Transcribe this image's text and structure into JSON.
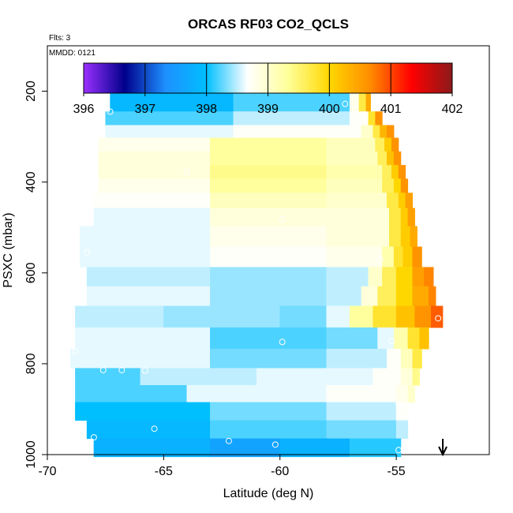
{
  "chart_data": {
    "type": "heatmap",
    "title": "ORCAS RF03 CO2_QCLS",
    "annotations": [
      "Flts: 3",
      "MMDD: 0121"
    ],
    "xlabel": "Latitude (deg N)",
    "ylabel": "PSXC (mbar)",
    "xlim": [
      -70,
      -51
    ],
    "ylim": [
      1000,
      100
    ],
    "x_ticks": [
      -70,
      -65,
      -60,
      -55
    ],
    "x_tick_labels": [
      "-70",
      "-65",
      "-60",
      "-55"
    ],
    "y_ticks": [
      200,
      400,
      600,
      800,
      1000
    ],
    "y_tick_labels": [
      "200",
      "400",
      "600",
      "800",
      "1000"
    ],
    "colorbar": {
      "min": 396,
      "max": 402,
      "ticks": [
        396,
        397,
        398,
        399,
        400,
        401,
        402
      ],
      "tick_labels": [
        "396",
        "397",
        "398",
        "399",
        "400",
        "401",
        "402"
      ],
      "colors": [
        "#9b30ff",
        "#00008b",
        "#1e90ff",
        "#00bfff",
        "#ffffff",
        "#ffff99",
        "#ffd700",
        "#ff8c00",
        "#ff0000",
        "#8b1a1a"
      ]
    },
    "arrow_latitude": -53,
    "rows": [
      {
        "p": 183,
        "segs": [
          [
            -57.9,
            -57.7,
            397.0
          ],
          [
            -57.7,
            -57.5,
            397.6
          ],
          [
            -57.5,
            -57.2,
            398.4
          ],
          [
            -57.2,
            -56.9,
            398.9
          ],
          [
            -56.9,
            -56.6,
            399.8
          ],
          [
            -56.6,
            -56.3,
            400.4
          ]
        ]
      },
      {
        "p": 228,
        "segs": [
          [
            -67.3,
            -62.0,
            397.9
          ],
          [
            -62.0,
            -57.0,
            398.2
          ],
          [
            -57.0,
            -56.6,
            398.8
          ],
          [
            -56.6,
            -56.3,
            399.7
          ],
          [
            -56.3,
            -56.1,
            400.4
          ]
        ]
      },
      {
        "p": 262,
        "segs": [
          [
            -67.5,
            -62.0,
            398.2
          ],
          [
            -62.0,
            -57.0,
            398.5
          ],
          [
            -57.0,
            -56.2,
            398.7
          ],
          [
            -56.2,
            -55.9,
            399.8
          ],
          [
            -55.9,
            -55.6,
            400.6
          ]
        ]
      },
      {
        "p": 288,
        "segs": [
          [
            -67.5,
            -62.0,
            398.6
          ],
          [
            -62.0,
            -56.5,
            398.7
          ],
          [
            -56.5,
            -56.0,
            399.0
          ],
          [
            -56.0,
            -55.7,
            399.7
          ],
          [
            -55.7,
            -55.4,
            400.3
          ],
          [
            -55.4,
            -55.1,
            400.6
          ]
        ]
      },
      {
        "p": 318,
        "segs": [
          [
            -67.8,
            -63.0,
            398.8
          ],
          [
            -63.0,
            -58.0,
            399.3
          ],
          [
            -58.0,
            -55.9,
            399.1
          ],
          [
            -55.9,
            -55.5,
            399.6
          ],
          [
            -55.5,
            -55.2,
            400.1
          ],
          [
            -55.2,
            -54.9,
            400.6
          ]
        ]
      },
      {
        "p": 348,
        "segs": [
          [
            -67.8,
            -63.0,
            398.9
          ],
          [
            -63.0,
            -58.0,
            399.3
          ],
          [
            -58.0,
            -55.8,
            399.1
          ],
          [
            -55.8,
            -55.4,
            399.6
          ],
          [
            -55.4,
            -55.1,
            400.2
          ],
          [
            -55.1,
            -54.8,
            400.6
          ]
        ]
      },
      {
        "p": 378,
        "segs": [
          [
            -67.8,
            -63.0,
            398.9
          ],
          [
            -63.0,
            -58.0,
            399.4
          ],
          [
            -58.0,
            -55.6,
            399.2
          ],
          [
            -55.6,
            -55.2,
            399.6
          ],
          [
            -55.2,
            -54.9,
            400.1
          ],
          [
            -54.9,
            -54.6,
            400.6
          ]
        ]
      },
      {
        "p": 408,
        "segs": [
          [
            -67.8,
            -63.0,
            398.8
          ],
          [
            -63.0,
            -58.0,
            399.3
          ],
          [
            -58.0,
            -55.6,
            399.1
          ],
          [
            -55.6,
            -55.1,
            399.6
          ],
          [
            -55.1,
            -54.8,
            400.0
          ],
          [
            -54.8,
            -54.5,
            400.6
          ]
        ]
      },
      {
        "p": 440,
        "segs": [
          [
            -68.0,
            -63.0,
            398.7
          ],
          [
            -63.0,
            -58.0,
            399.1
          ],
          [
            -58.0,
            -55.4,
            399.0
          ],
          [
            -55.4,
            -54.9,
            399.7
          ],
          [
            -54.9,
            -54.6,
            400.1
          ],
          [
            -54.6,
            -54.3,
            400.5
          ]
        ]
      },
      {
        "p": 475,
        "segs": [
          [
            -68.0,
            -63.0,
            398.6
          ],
          [
            -63.0,
            -58.0,
            398.9
          ],
          [
            -58.0,
            -55.3,
            398.9
          ],
          [
            -55.3,
            -54.8,
            399.7
          ],
          [
            -54.8,
            -54.5,
            400.1
          ],
          [
            -54.5,
            -54.2,
            400.5
          ]
        ]
      },
      {
        "p": 520,
        "segs": [
          [
            -68.6,
            -63.0,
            398.6
          ],
          [
            -63.0,
            -58.0,
            398.8
          ],
          [
            -58.0,
            -55.3,
            398.9
          ],
          [
            -55.3,
            -54.8,
            399.7
          ],
          [
            -54.8,
            -54.4,
            400.1
          ],
          [
            -54.4,
            -54.1,
            400.4
          ]
        ]
      },
      {
        "p": 565,
        "segs": [
          [
            -68.6,
            -63.0,
            398.6
          ],
          [
            -63.0,
            -58.0,
            398.7
          ],
          [
            -58.0,
            -55.6,
            398.8
          ],
          [
            -55.6,
            -55.1,
            399.2
          ],
          [
            -55.1,
            -54.7,
            399.8
          ],
          [
            -54.7,
            -54.3,
            400.1
          ],
          [
            -54.3,
            -53.9,
            400.6
          ]
        ]
      },
      {
        "p": 610,
        "segs": [
          [
            -68.3,
            -63.0,
            398.5
          ],
          [
            -63.0,
            -58.0,
            398.4
          ],
          [
            -58.0,
            -56.2,
            398.5
          ],
          [
            -56.2,
            -55.6,
            399.0
          ],
          [
            -55.6,
            -55.0,
            399.6
          ],
          [
            -55.0,
            -54.3,
            400.0
          ],
          [
            -54.3,
            -53.8,
            400.5
          ],
          [
            -53.8,
            -53.4,
            400.7
          ]
        ]
      },
      {
        "p": 650,
        "segs": [
          [
            -68.3,
            -63.0,
            398.6
          ],
          [
            -63.0,
            -58.0,
            398.4
          ],
          [
            -58.0,
            -56.5,
            398.5
          ],
          [
            -56.5,
            -55.8,
            398.9
          ],
          [
            -55.8,
            -55.0,
            399.6
          ],
          [
            -55.0,
            -54.3,
            400.0
          ],
          [
            -54.3,
            -53.6,
            400.4
          ],
          [
            -53.6,
            -53.3,
            400.7
          ]
        ]
      },
      {
        "p": 696,
        "segs": [
          [
            -68.8,
            -65.0,
            398.5
          ],
          [
            -65.0,
            -60.0,
            398.4
          ],
          [
            -60.0,
            -58.0,
            398.3
          ],
          [
            -58.0,
            -57.0,
            398.6
          ],
          [
            -57.0,
            -56.0,
            399.3
          ],
          [
            -56.0,
            -55.0,
            399.8
          ],
          [
            -55.0,
            -54.2,
            400.2
          ],
          [
            -54.2,
            -53.5,
            400.6
          ],
          [
            -53.5,
            -53.0,
            400.9
          ]
        ]
      },
      {
        "p": 745,
        "segs": [
          [
            -68.8,
            -63.0,
            398.6
          ],
          [
            -63.0,
            -58.0,
            398.2
          ],
          [
            -58.0,
            -55.8,
            398.3
          ],
          [
            -55.8,
            -55.1,
            398.6
          ],
          [
            -55.1,
            -54.5,
            399.2
          ],
          [
            -54.5,
            -54.0,
            399.8
          ],
          [
            -54.0,
            -53.6,
            400.2
          ]
        ]
      },
      {
        "p": 790,
        "segs": [
          [
            -69.0,
            -63.0,
            398.6
          ],
          [
            -63.0,
            -58.0,
            398.3
          ],
          [
            -58.0,
            -55.4,
            398.5
          ],
          [
            -55.4,
            -54.8,
            398.7
          ],
          [
            -54.8,
            -54.3,
            399.1
          ],
          [
            -54.3,
            -53.9,
            399.7
          ]
        ]
      },
      {
        "p": 830,
        "segs": [
          [
            -68.8,
            -66.0,
            398.2
          ],
          [
            -66.0,
            -61.0,
            398.5
          ],
          [
            -61.0,
            -56.0,
            398.6
          ],
          [
            -56.0,
            -54.8,
            398.7
          ],
          [
            -54.8,
            -54.3,
            398.9
          ],
          [
            -54.3,
            -54.0,
            399.4
          ]
        ]
      },
      {
        "p": 865,
        "segs": [
          [
            -68.8,
            -64.0,
            398.2
          ],
          [
            -64.0,
            -58.0,
            398.6
          ],
          [
            -58.0,
            -55.0,
            398.7
          ],
          [
            -55.0,
            -54.5,
            398.8
          ],
          [
            -54.5,
            -54.2,
            399.0
          ]
        ]
      },
      {
        "p": 905,
        "segs": [
          [
            -68.8,
            -63.0,
            398.0
          ],
          [
            -63.0,
            -58.0,
            398.3
          ],
          [
            -58.0,
            -55.0,
            398.5
          ],
          [
            -55.0,
            -54.5,
            398.7
          ]
        ]
      },
      {
        "p": 945,
        "segs": [
          [
            -68.3,
            -63.0,
            397.9
          ],
          [
            -63.0,
            -58.0,
            398.2
          ],
          [
            -58.0,
            -55.0,
            398.3
          ],
          [
            -55.0,
            -54.5,
            398.5
          ]
        ]
      },
      {
        "p": 985,
        "segs": [
          [
            -68.0,
            -63.0,
            397.8
          ],
          [
            -63.0,
            -60.0,
            397.6
          ],
          [
            -60.0,
            -57.0,
            397.8
          ],
          [
            -57.0,
            -54.8,
            398.1
          ]
        ]
      }
    ],
    "points": [
      {
        "x": -57.9,
        "y": 180
      },
      {
        "x": -57.6,
        "y": 180
      },
      {
        "x": -56.8,
        "y": 180
      },
      {
        "x": -57.2,
        "y": 228
      },
      {
        "x": -67.3,
        "y": 245
      },
      {
        "x": -67.9,
        "y": 390
      },
      {
        "x": -64.0,
        "y": 378
      },
      {
        "x": -59.9,
        "y": 482
      },
      {
        "x": -68.3,
        "y": 555
      },
      {
        "x": -55.7,
        "y": 570
      },
      {
        "x": -53.2,
        "y": 700
      },
      {
        "x": -59.9,
        "y": 752
      },
      {
        "x": -55.2,
        "y": 750
      },
      {
        "x": -68.8,
        "y": 773
      },
      {
        "x": -67.6,
        "y": 814
      },
      {
        "x": -66.8,
        "y": 814
      },
      {
        "x": -65.8,
        "y": 815
      },
      {
        "x": -54.9,
        "y": 888
      },
      {
        "x": -65.4,
        "y": 943
      },
      {
        "x": -68.0,
        "y": 962
      },
      {
        "x": -62.2,
        "y": 970
      },
      {
        "x": -60.2,
        "y": 978
      },
      {
        "x": -54.9,
        "y": 990
      }
    ]
  }
}
